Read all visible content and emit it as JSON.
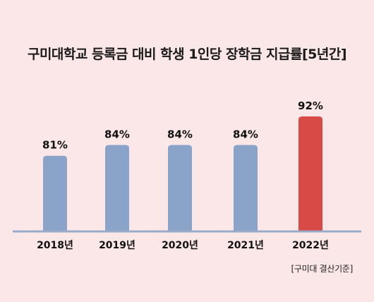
{
  "chart_data": {
    "type": "bar",
    "title": "구미대학교 등록금 대비 학생 1인당 장학금 지급률[5년간]",
    "categories": [
      "2018년",
      "2019년",
      "2020년",
      "2021년",
      "2022년"
    ],
    "values": [
      81,
      84,
      84,
      84,
      92
    ],
    "value_labels": [
      "81%",
      "84%",
      "84%",
      "84%",
      "92%"
    ],
    "unit": "%",
    "ylim": [
      60,
      93
    ],
    "xlabel": "",
    "ylabel": "",
    "grid": false,
    "legend": "none",
    "colors": {
      "default_bar": "#8aa4c9",
      "highlight_bar": "#d84a45",
      "baseline": "#9aaccc",
      "background": "#fbe6e8"
    },
    "highlight_index": 4,
    "source_note": "[구미대 결산기준]"
  }
}
